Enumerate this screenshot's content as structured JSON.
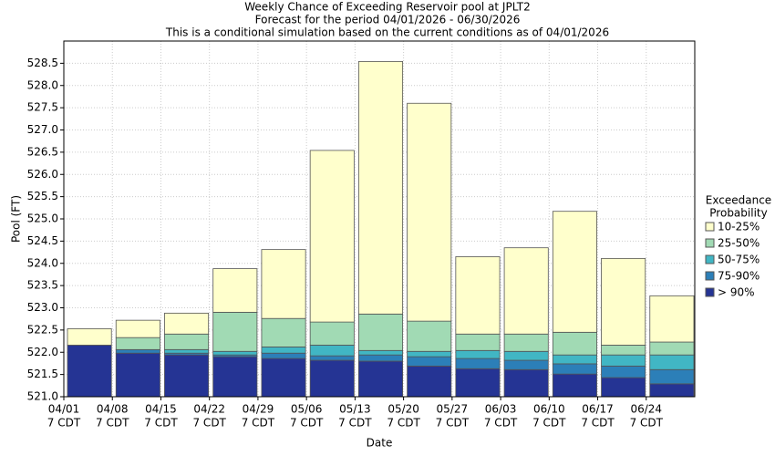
{
  "chart_data": {
    "type": "range-bar",
    "title": "Weekly Chance of Exceeding Reservoir pool at JPLT2",
    "subtitle": "Forecast for the period 04/01/2026 - 06/30/2026",
    "note": "This is a conditional simulation based on the current conditions as of 04/01/2026",
    "y_label": "Pool (FT)",
    "x_label": "Date",
    "legend_title": [
      "Exceedance",
      "Probability"
    ],
    "legend": "right",
    "category_sublabel": "7 CDT",
    "categories": [
      "04/01",
      "04/08",
      "04/15",
      "04/22",
      "04/29",
      "05/06",
      "05/13",
      "05/20",
      "05/27",
      "06/03",
      "06/10",
      "06/17",
      "06/24"
    ],
    "series": [
      {
        "name": "> 90%",
        "color": "#253494",
        "values": [
          522.16,
          521.98,
          521.94,
          521.9,
          521.86,
          521.82,
          521.8,
          521.69,
          521.63,
          521.61,
          521.51,
          521.43,
          521.29
        ]
      },
      {
        "name": "75-90%",
        "color": "#2c7fb8",
        "values": [
          522.16,
          522.06,
          521.98,
          521.94,
          521.98,
          521.92,
          521.94,
          521.9,
          521.86,
          521.82,
          521.74,
          521.69,
          521.61
        ]
      },
      {
        "name": "50-75%",
        "color": "#41b6c4",
        "values": [
          522.16,
          522.06,
          522.06,
          522.02,
          522.12,
          522.16,
          522.04,
          522.02,
          522.04,
          522.02,
          521.94,
          521.94,
          521.94
        ]
      },
      {
        "name": "25-50%",
        "color": "#a1dab4",
        "values": [
          522.16,
          522.33,
          522.41,
          522.9,
          522.76,
          522.68,
          522.86,
          522.7,
          522.41,
          522.41,
          522.45,
          522.16,
          522.23
        ]
      },
      {
        "name": "10-25%",
        "color": "#ffffcc",
        "values": [
          522.53,
          522.72,
          522.88,
          523.88,
          524.31,
          526.54,
          528.54,
          527.6,
          524.15,
          524.35,
          525.17,
          524.11,
          523.27
        ]
      }
    ],
    "ylim": [
      521,
      529
    ],
    "yticks": [
      {
        "value": 521,
        "label": "521.0"
      },
      {
        "value": 521.5,
        "label": "521.5"
      },
      {
        "value": 522,
        "label": "522.0"
      },
      {
        "value": 522.5,
        "label": "522.5"
      },
      {
        "value": 523,
        "label": "523.0"
      },
      {
        "value": 523.5,
        "label": "523.5"
      },
      {
        "value": 524,
        "label": "524.0"
      },
      {
        "value": 524.5,
        "label": "524.5"
      },
      {
        "value": 525,
        "label": "525.0"
      },
      {
        "value": 525.5,
        "label": "525.5"
      },
      {
        "value": 526,
        "label": "526.0"
      },
      {
        "value": 526.5,
        "label": "526.5"
      },
      {
        "value": 527,
        "label": "527.0"
      },
      {
        "value": 527.5,
        "label": "527.5"
      },
      {
        "value": 528,
        "label": "528.0"
      },
      {
        "value": 528.5,
        "label": "528.5"
      }
    ],
    "grid": true
  }
}
